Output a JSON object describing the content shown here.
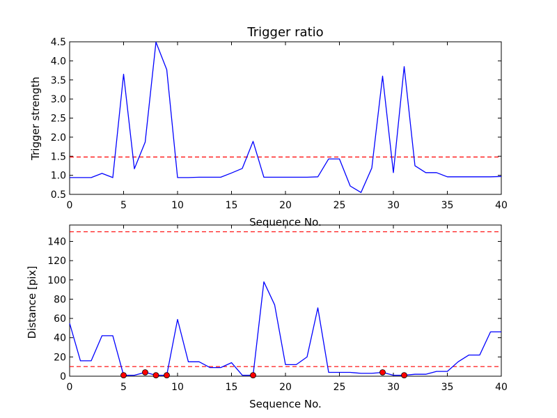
{
  "chart_data": [
    {
      "type": "line",
      "title": "Trigger ratio",
      "xlabel": "Sequence No.",
      "ylabel": "Trigger strength",
      "xlim": [
        0,
        40
      ],
      "ylim": [
        0.5,
        4.5
      ],
      "xticks": [
        "0",
        "5",
        "10",
        "15",
        "20",
        "25",
        "30",
        "35",
        "40"
      ],
      "yticks": [
        "0.5",
        "1.0",
        "1.5",
        "2.0",
        "2.5",
        "3.0",
        "3.5",
        "4.0",
        "4.5"
      ],
      "grid": false,
      "line_color": "#0000ff",
      "threshold_color": "#ff0000",
      "thresholds": [
        1.48
      ],
      "series": [
        {
          "x": [
            0,
            1,
            2,
            3,
            4,
            5,
            6,
            7,
            8,
            9,
            10,
            11,
            12,
            13,
            14,
            15,
            16,
            17,
            18,
            19,
            20,
            21,
            22,
            23,
            24,
            25,
            26,
            27,
            28,
            29,
            30,
            31,
            32,
            33,
            34,
            35,
            36,
            37,
            38,
            39,
            40
          ],
          "values": [
            0.94,
            0.94,
            0.94,
            1.05,
            0.94,
            3.65,
            1.17,
            1.87,
            4.49,
            3.77,
            0.94,
            0.94,
            0.95,
            0.95,
            0.95,
            1.06,
            1.18,
            1.89,
            0.95,
            0.95,
            0.95,
            0.95,
            0.95,
            0.96,
            1.43,
            1.43,
            0.72,
            0.55,
            1.19,
            3.6,
            1.07,
            3.85,
            1.25,
            1.07,
            1.07,
            0.96,
            0.96,
            0.96,
            0.96,
            0.96,
            0.97
          ]
        }
      ]
    },
    {
      "type": "line",
      "title": "",
      "xlabel": "Sequence No.",
      "ylabel": "Distance [pix]",
      "xlim": [
        0,
        40
      ],
      "ylim": [
        0,
        157
      ],
      "xticks": [
        "0",
        "5",
        "10",
        "15",
        "20",
        "25",
        "30",
        "35",
        "40"
      ],
      "yticks": [
        "0",
        "20",
        "40",
        "60",
        "80",
        "100",
        "120",
        "140"
      ],
      "grid": false,
      "line_color": "#0000ff",
      "threshold_color": "#ff0000",
      "marker_color": "#ff0000",
      "thresholds": [
        10,
        150
      ],
      "series": [
        {
          "x": [
            0,
            1,
            2,
            3,
            4,
            5,
            6,
            7,
            8,
            9,
            10,
            11,
            12,
            13,
            14,
            15,
            16,
            17,
            18,
            19,
            20,
            21,
            22,
            23,
            24,
            25,
            26,
            27,
            28,
            29,
            30,
            31,
            32,
            33,
            34,
            35,
            36,
            37,
            38,
            39,
            40
          ],
          "values": [
            55,
            16,
            16,
            42,
            42,
            1,
            1,
            4,
            1,
            1,
            59,
            15,
            15,
            9,
            9,
            14,
            1,
            1,
            98,
            74,
            12,
            12,
            20,
            71,
            4,
            4,
            4,
            3,
            3,
            4,
            1,
            1,
            2,
            2,
            5,
            5,
            15,
            22,
            22,
            46,
            46
          ]
        }
      ],
      "markers": {
        "x": [
          5,
          7,
          8,
          9,
          17,
          29,
          31
        ],
        "values": [
          1,
          4,
          1,
          1,
          1,
          4,
          1
        ]
      }
    }
  ]
}
